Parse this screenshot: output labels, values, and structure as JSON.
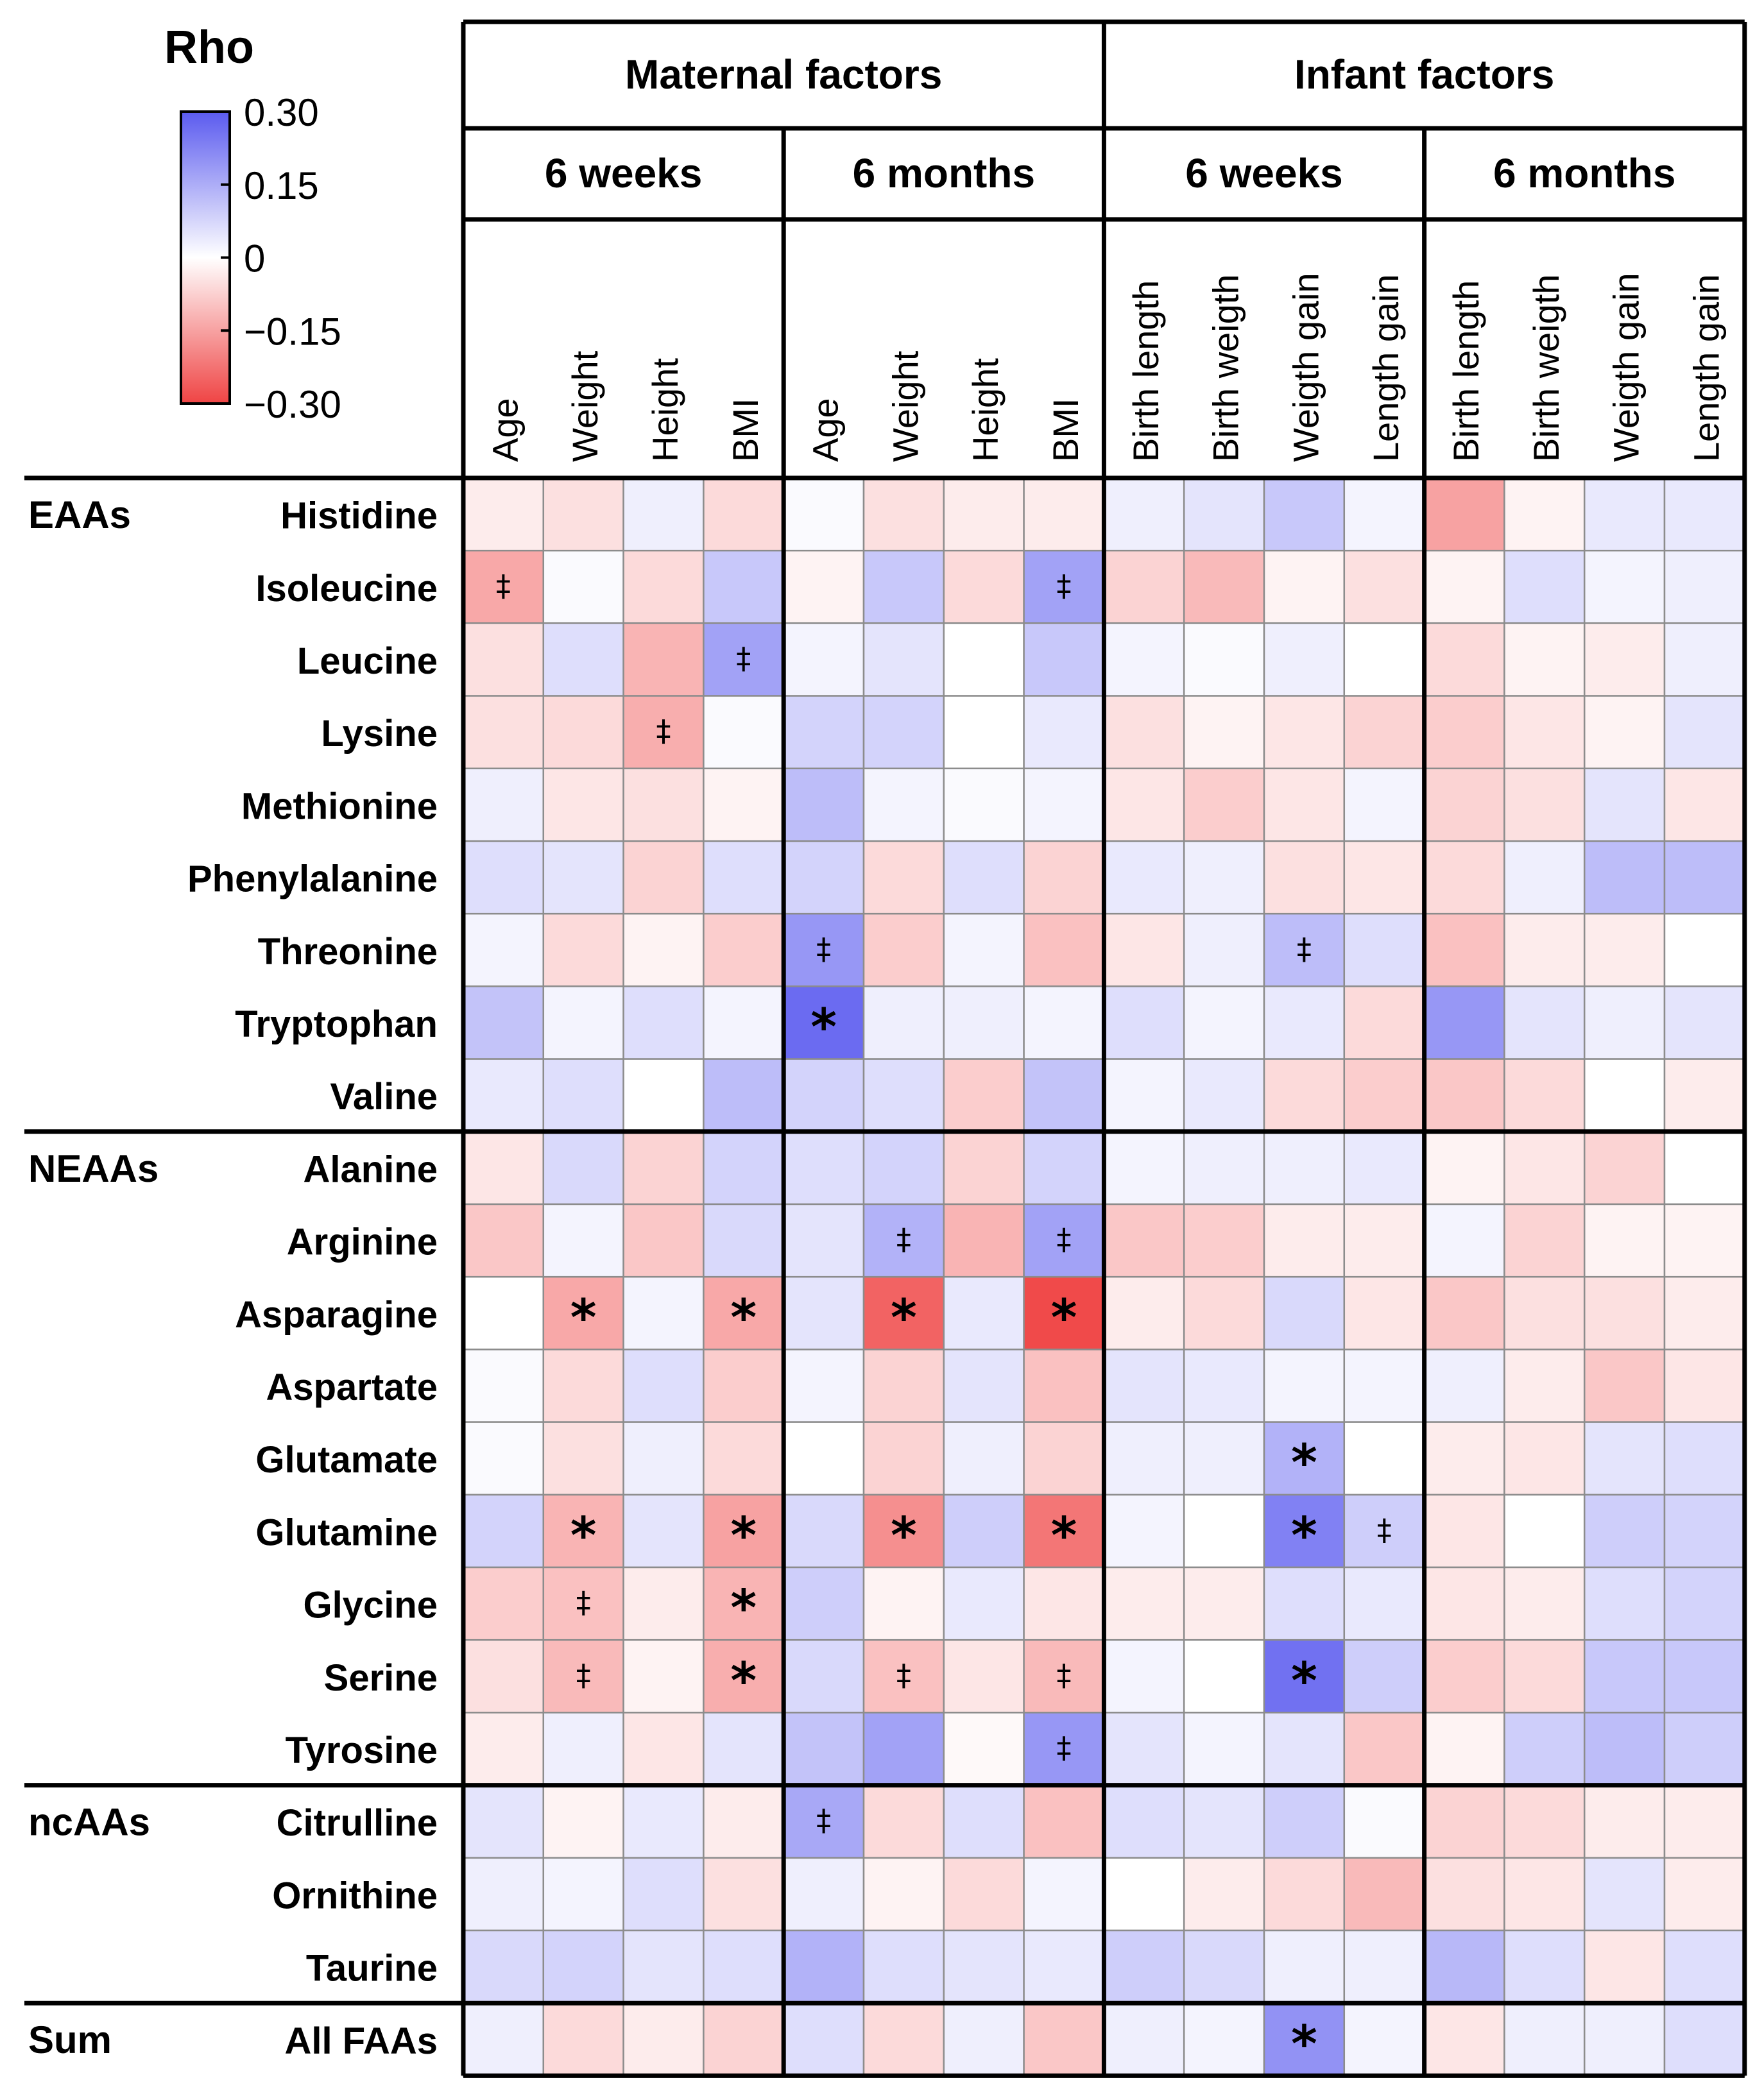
{
  "chart_data": {
    "type": "heatmap",
    "legend": {
      "title": "Rho",
      "ticks": [
        "0.30",
        "0.15",
        "0",
        "−0.15",
        "−0.30"
      ],
      "range": [
        -0.3,
        0.3
      ],
      "color_positive": "#5b5bef",
      "color_zero": "#ffffff",
      "color_negative": "#ef4444",
      "placement": "top-left"
    },
    "column_groups": [
      {
        "label": "Maternal factors",
        "subgroups": [
          {
            "label": "6 weeks",
            "columns": [
              "Age",
              "Weight",
              "Height",
              "BMI"
            ]
          },
          {
            "label": "6 months",
            "columns": [
              "Age",
              "Weight",
              "Height",
              "BMI"
            ]
          }
        ]
      },
      {
        "label": "Infant factors",
        "subgroups": [
          {
            "label": "6 weeks",
            "columns": [
              "Birth length",
              "Birth weigth",
              "Weigth gain",
              "Length gain"
            ]
          },
          {
            "label": "6 months",
            "columns": [
              "Birth length",
              "Birth weigth",
              "Weigth gain",
              "Length gain"
            ]
          }
        ]
      }
    ],
    "row_groups": [
      {
        "label": "EAAs",
        "rows": [
          "Histidine",
          "Isoleucine",
          "Leucine",
          "Lysine",
          "Methionine",
          "Phenylalanine",
          "Threonine",
          "Tryptophan",
          "Valine"
        ]
      },
      {
        "label": "NEAAs",
        "rows": [
          "Alanine",
          "Arginine",
          "Asparagine",
          "Aspartate",
          "Glutamate",
          "Glutamine",
          "Glycine",
          "Serine",
          "Tyrosine"
        ]
      },
      {
        "label": "ncAAs",
        "rows": [
          "Citrulline",
          "Ornithine",
          "Taurine"
        ]
      },
      {
        "label": "Sum",
        "rows": [
          "All FAAs"
        ]
      }
    ],
    "values": [
      [
        -0.03,
        -0.05,
        0.03,
        -0.06,
        0.01,
        -0.05,
        -0.03,
        -0.03,
        0.03,
        0.05,
        0.1,
        0.02,
        -0.15,
        -0.02,
        0.04,
        0.04
      ],
      [
        -0.14,
        0.01,
        -0.06,
        0.1,
        -0.02,
        0.1,
        -0.06,
        0.17,
        -0.07,
        -0.11,
        -0.02,
        -0.05,
        -0.02,
        0.06,
        0.02,
        0.03
      ],
      [
        -0.05,
        0.06,
        -0.12,
        0.17,
        0.02,
        0.05,
        0.0,
        0.1,
        0.02,
        0.01,
        0.03,
        0.0,
        -0.06,
        -0.02,
        -0.03,
        0.03
      ],
      [
        -0.05,
        -0.06,
        -0.13,
        0.01,
        0.08,
        0.08,
        0.0,
        0.04,
        -0.05,
        -0.02,
        -0.04,
        -0.07,
        -0.08,
        -0.04,
        -0.02,
        0.05
      ],
      [
        0.03,
        -0.04,
        -0.05,
        -0.02,
        0.12,
        0.02,
        0.01,
        0.02,
        -0.04,
        -0.08,
        -0.04,
        0.02,
        -0.07,
        -0.05,
        0.05,
        -0.04
      ],
      [
        0.06,
        0.05,
        -0.07,
        0.06,
        0.08,
        -0.06,
        0.06,
        -0.07,
        0.04,
        0.03,
        -0.05,
        -0.04,
        -0.06,
        0.03,
        0.12,
        0.12
      ],
      [
        0.02,
        -0.06,
        -0.02,
        -0.08,
        0.19,
        -0.08,
        0.02,
        -0.1,
        -0.04,
        0.03,
        0.12,
        0.06,
        -0.1,
        -0.03,
        -0.03,
        0.0
      ],
      [
        0.11,
        0.02,
        0.06,
        0.02,
        0.27,
        0.03,
        0.03,
        0.02,
        0.06,
        0.02,
        0.04,
        -0.06,
        0.19,
        0.05,
        0.03,
        0.05
      ],
      [
        0.04,
        0.06,
        0.0,
        0.12,
        0.08,
        0.06,
        -0.08,
        0.11,
        0.02,
        0.04,
        -0.06,
        -0.08,
        -0.09,
        -0.06,
        0.0,
        -0.03
      ],
      [
        -0.04,
        0.07,
        -0.07,
        0.08,
        0.06,
        0.08,
        -0.07,
        0.08,
        0.02,
        0.03,
        0.03,
        0.04,
        -0.02,
        -0.04,
        -0.07,
        0.0
      ],
      [
        -0.09,
        0.02,
        -0.09,
        0.07,
        0.05,
        0.14,
        -0.12,
        0.17,
        -0.09,
        -0.08,
        -0.03,
        -0.03,
        0.02,
        -0.07,
        -0.02,
        -0.02
      ],
      [
        0.0,
        -0.14,
        0.02,
        -0.14,
        0.05,
        -0.25,
        0.04,
        -0.29,
        -0.03,
        -0.06,
        0.07,
        -0.04,
        -0.09,
        -0.05,
        -0.05,
        -0.03
      ],
      [
        0.01,
        -0.06,
        0.06,
        -0.08,
        0.02,
        -0.07,
        0.05,
        -0.1,
        0.05,
        0.04,
        0.02,
        0.02,
        0.03,
        -0.03,
        -0.09,
        -0.04
      ],
      [
        0.01,
        -0.05,
        0.03,
        -0.06,
        0.0,
        -0.07,
        0.03,
        -0.07,
        0.03,
        0.03,
        0.14,
        0.0,
        -0.03,
        -0.04,
        0.05,
        0.06
      ],
      [
        0.08,
        -0.12,
        0.05,
        -0.15,
        0.07,
        -0.18,
        0.09,
        -0.22,
        0.02,
        0.0,
        0.23,
        0.09,
        -0.04,
        0.0,
        0.09,
        0.08
      ],
      [
        -0.08,
        -0.1,
        -0.03,
        -0.12,
        0.09,
        -0.02,
        0.04,
        -0.04,
        -0.03,
        -0.03,
        0.06,
        0.04,
        -0.04,
        -0.03,
        0.06,
        0.08
      ],
      [
        -0.05,
        -0.11,
        -0.02,
        -0.13,
        0.07,
        -0.1,
        -0.04,
        -0.11,
        0.02,
        0.0,
        0.26,
        0.09,
        -0.08,
        -0.06,
        0.1,
        0.1
      ],
      [
        -0.03,
        0.03,
        -0.04,
        0.05,
        0.11,
        0.17,
        -0.01,
        0.19,
        0.05,
        0.02,
        0.05,
        -0.09,
        -0.02,
        0.09,
        0.12,
        0.09
      ],
      [
        0.05,
        -0.02,
        0.04,
        -0.03,
        0.16,
        -0.06,
        0.06,
        -0.1,
        0.06,
        0.05,
        0.09,
        0.01,
        -0.07,
        -0.06,
        -0.03,
        -0.03
      ],
      [
        0.03,
        0.02,
        0.06,
        -0.05,
        0.03,
        -0.02,
        -0.06,
        0.02,
        0.0,
        -0.03,
        -0.06,
        -0.11,
        -0.05,
        -0.04,
        0.05,
        -0.03
      ],
      [
        0.07,
        0.08,
        0.05,
        0.06,
        0.14,
        0.06,
        0.05,
        0.04,
        0.09,
        0.07,
        0.03,
        0.03,
        0.13,
        0.06,
        -0.04,
        0.06
      ],
      [
        0.03,
        -0.06,
        -0.03,
        -0.07,
        0.06,
        -0.06,
        0.03,
        -0.09,
        0.03,
        0.02,
        0.2,
        0.02,
        -0.04,
        0.03,
        0.03,
        0.06
      ]
    ],
    "significance": [
      [
        "",
        "",
        "",
        "",
        "",
        "",
        "",
        "",
        "",
        "",
        "",
        "",
        "",
        "",
        "",
        ""
      ],
      [
        "‡",
        "",
        "",
        "",
        "",
        "",
        "",
        "‡",
        "",
        "",
        "",
        "",
        "",
        "",
        "",
        ""
      ],
      [
        "",
        "",
        "",
        "‡",
        "",
        "",
        "",
        "",
        "",
        "",
        "",
        "",
        "",
        "",
        "",
        ""
      ],
      [
        "",
        "",
        "‡",
        "",
        "",
        "",
        "",
        "",
        "",
        "",
        "",
        "",
        "",
        "",
        "",
        ""
      ],
      [
        "",
        "",
        "",
        "",
        "",
        "",
        "",
        "",
        "",
        "",
        "",
        "",
        "",
        "",
        "",
        ""
      ],
      [
        "",
        "",
        "",
        "",
        "",
        "",
        "",
        "",
        "",
        "",
        "",
        "",
        "",
        "",
        "",
        ""
      ],
      [
        "",
        "",
        "",
        "",
        "‡",
        "",
        "",
        "",
        "",
        "",
        "‡",
        "",
        "",
        "",
        "",
        ""
      ],
      [
        "",
        "",
        "",
        "",
        "*",
        "",
        "",
        "",
        "",
        "",
        "",
        "",
        "",
        "",
        "",
        ""
      ],
      [
        "",
        "",
        "",
        "",
        "",
        "",
        "",
        "",
        "",
        "",
        "",
        "",
        "",
        "",
        "",
        ""
      ],
      [
        "",
        "",
        "",
        "",
        "",
        "",
        "",
        "",
        "",
        "",
        "",
        "",
        "",
        "",
        "",
        ""
      ],
      [
        "",
        "",
        "",
        "",
        "",
        "‡",
        "",
        "‡",
        "",
        "",
        "",
        "",
        "",
        "",
        "",
        ""
      ],
      [
        "",
        "*",
        "",
        "*",
        "",
        "*",
        "",
        "*",
        "",
        "",
        "",
        "",
        "",
        "",
        "",
        ""
      ],
      [
        "",
        "",
        "",
        "",
        "",
        "",
        "",
        "",
        "",
        "",
        "",
        "",
        "",
        "",
        "",
        ""
      ],
      [
        "",
        "",
        "",
        "",
        "",
        "",
        "",
        "",
        "",
        "",
        "*",
        "",
        "",
        "",
        "",
        ""
      ],
      [
        "",
        "*",
        "",
        "*",
        "",
        "*",
        "",
        "*",
        "",
        "",
        "*",
        "‡",
        "",
        "",
        "",
        ""
      ],
      [
        "",
        "‡",
        "",
        "*",
        "",
        "",
        "",
        "",
        "",
        "",
        "",
        "",
        "",
        "",
        "",
        ""
      ],
      [
        "",
        "‡",
        "",
        "*",
        "",
        "‡",
        "",
        "‡",
        "",
        "",
        "*",
        "",
        "",
        "",
        "",
        ""
      ],
      [
        "",
        "",
        "",
        "",
        "",
        "",
        "",
        "‡",
        "",
        "",
        "",
        "",
        "",
        "",
        "",
        ""
      ],
      [
        "",
        "",
        "",
        "",
        "‡",
        "",
        "",
        "",
        "",
        "",
        "",
        "",
        "",
        "",
        "",
        ""
      ],
      [
        "",
        "",
        "",
        "",
        "",
        "",
        "",
        "",
        "",
        "",
        "",
        "",
        "",
        "",
        "",
        ""
      ],
      [
        "",
        "",
        "",
        "",
        "",
        "",
        "",
        "",
        "",
        "",
        "",
        "",
        "",
        "",
        "",
        ""
      ],
      [
        "",
        "",
        "",
        "",
        "",
        "",
        "",
        "",
        "",
        "",
        "*",
        "",
        "",
        "",
        "",
        ""
      ]
    ]
  }
}
